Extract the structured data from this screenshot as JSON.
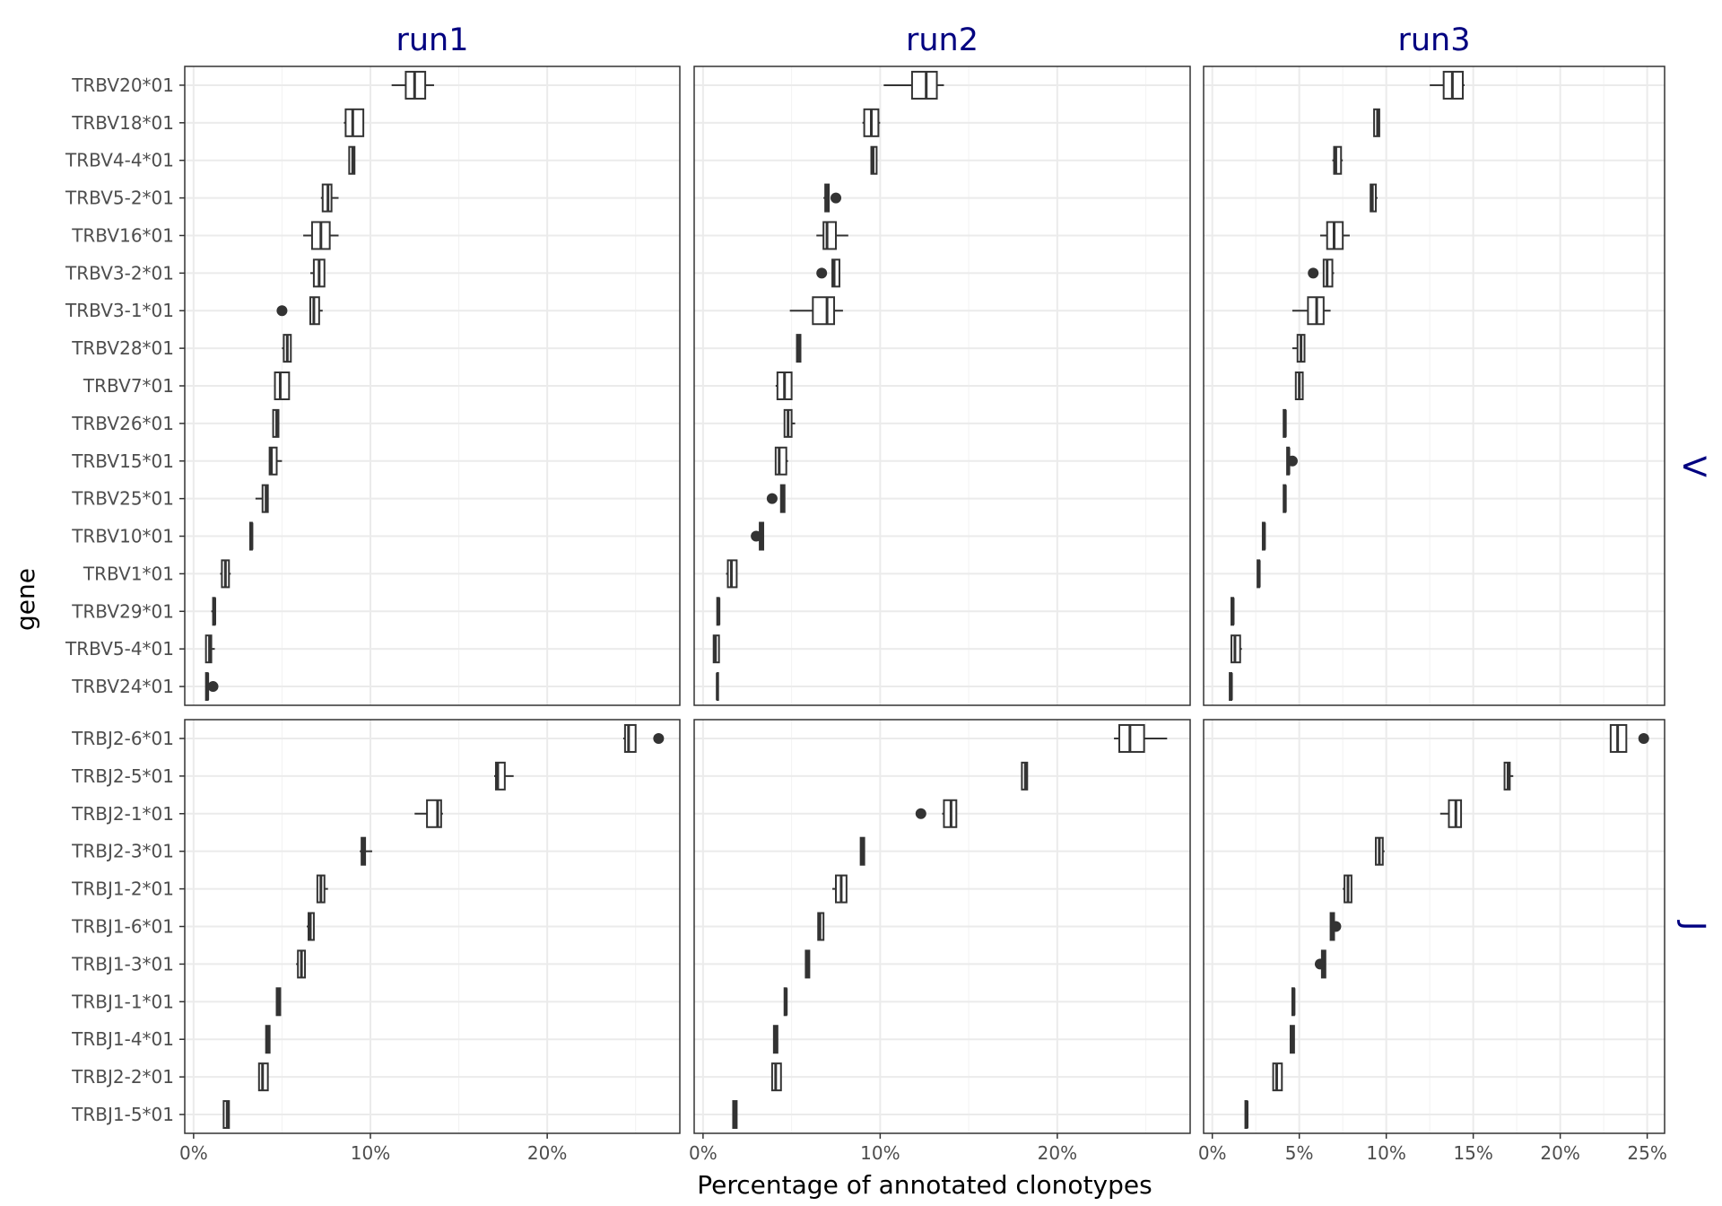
{
  "chart_data": {
    "type": "boxplot",
    "xlabel": "Percentage of annotated clonotypes",
    "ylabel": "gene",
    "columns": [
      "run1",
      "run2",
      "run3"
    ],
    "rows": [
      "V",
      "J"
    ],
    "xlim": {
      "run1": [
        -0.5,
        27.5
      ],
      "run2": [
        -0.5,
        27.5
      ],
      "run3": [
        -0.5,
        26
      ]
    },
    "xticks": {
      "run1": {
        "values": [
          0,
          10,
          20
        ],
        "labels": [
          "0%",
          "10%",
          "20%"
        ]
      },
      "run2": {
        "values": [
          0,
          10,
          20
        ],
        "labels": [
          "0%",
          "10%",
          "20%"
        ]
      },
      "run3": {
        "values": [
          0,
          5,
          10,
          15,
          20,
          25
        ],
        "labels": [
          "0%",
          "5%",
          "10%",
          "15%",
          "20%",
          "25%"
        ]
      }
    },
    "panels": [
      {
        "row": "V",
        "genes": [
          "TRBV20*01",
          "TRBV18*01",
          "TRBV4-4*01",
          "TRBV5-2*01",
          "TRBV16*01",
          "TRBV3-2*01",
          "TRBV3-1*01",
          "TRBV28*01",
          "TRBV7*01",
          "TRBV26*01",
          "TRBV15*01",
          "TRBV25*01",
          "TRBV10*01",
          "TRBV1*01",
          "TRBV29*01",
          "TRBV5-4*01",
          "TRBV24*01"
        ],
        "runs": [
          {
            "run": "run1",
            "boxes": [
              [
                11.2,
                12.0,
                12.5,
                13.1,
                13.6
              ],
              [
                8.5,
                8.6,
                9.0,
                9.6,
                9.6
              ],
              [
                8.8,
                8.8,
                9.0,
                9.1,
                9.1
              ],
              [
                7.2,
                7.3,
                7.6,
                7.8,
                8.2
              ],
              [
                6.2,
                6.7,
                7.2,
                7.7,
                8.2
              ],
              [
                6.6,
                6.8,
                7.1,
                7.4,
                7.4
              ],
              [
                6.6,
                6.6,
                6.8,
                7.1,
                7.3
              ],
              [
                5.0,
                5.1,
                5.3,
                5.5,
                5.5
              ],
              [
                4.6,
                4.6,
                4.9,
                5.4,
                5.4
              ],
              [
                4.5,
                4.5,
                4.7,
                4.8,
                4.8
              ],
              [
                4.3,
                4.3,
                4.4,
                4.7,
                5.0
              ],
              [
                3.5,
                3.9,
                4.1,
                4.2,
                4.2
              ],
              [
                3.2,
                3.2,
                3.3,
                3.3,
                3.3
              ],
              [
                1.5,
                1.6,
                1.8,
                2.0,
                2.1
              ],
              [
                1.0,
                1.1,
                1.2,
                1.2,
                1.2
              ],
              [
                0.7,
                0.7,
                0.9,
                1.0,
                1.2
              ],
              [
                0.7,
                0.7,
                0.8,
                0.8,
                0.8
              ]
            ],
            "outliers": [
              {
                "gene": "TRBV3-1*01",
                "value": 5.0
              },
              {
                "gene": "TRBV24*01",
                "value": 1.1
              }
            ]
          },
          {
            "run": "run2",
            "boxes": [
              [
                10.2,
                11.8,
                12.6,
                13.2,
                13.6
              ],
              [
                9.0,
                9.1,
                9.5,
                9.9,
                10.0
              ],
              [
                9.5,
                9.5,
                9.6,
                9.8,
                9.8
              ],
              [
                6.8,
                6.9,
                7.0,
                7.1,
                7.1
              ],
              [
                6.4,
                6.8,
                7.0,
                7.5,
                8.2
              ],
              [
                7.3,
                7.3,
                7.4,
                7.7,
                7.7
              ],
              [
                4.9,
                6.2,
                7.0,
                7.4,
                7.9
              ],
              [
                5.3,
                5.3,
                5.4,
                5.5,
                5.5
              ],
              [
                4.1,
                4.2,
                4.6,
                5.0,
                5.0
              ],
              [
                4.6,
                4.6,
                4.8,
                5.0,
                5.2
              ],
              [
                4.1,
                4.1,
                4.3,
                4.7,
                4.8
              ],
              [
                4.4,
                4.4,
                4.5,
                4.6,
                4.6
              ],
              [
                3.2,
                3.2,
                3.3,
                3.4,
                3.4
              ],
              [
                1.3,
                1.4,
                1.6,
                1.9,
                1.9
              ],
              [
                0.8,
                0.8,
                0.9,
                0.9,
                0.9
              ],
              [
                0.6,
                0.6,
                0.7,
                0.9,
                0.9
              ],
              [
                0.8,
                0.8,
                0.8,
                0.8,
                0.8
              ]
            ],
            "outliers": [
              {
                "gene": "TRBV5-2*01",
                "value": 7.5
              },
              {
                "gene": "TRBV3-2*01",
                "value": 6.7
              },
              {
                "gene": "TRBV25*01",
                "value": 3.9
              },
              {
                "gene": "TRBV10*01",
                "value": 3.0
              }
            ]
          },
          {
            "run": "run3",
            "boxes": [
              [
                12.5,
                13.3,
                13.8,
                14.4,
                14.5
              ],
              [
                9.3,
                9.3,
                9.5,
                9.6,
                9.6
              ],
              [
                6.9,
                7.0,
                7.1,
                7.4,
                7.5
              ],
              [
                9.1,
                9.1,
                9.2,
                9.4,
                9.5
              ],
              [
                6.2,
                6.6,
                7.0,
                7.5,
                7.9
              ],
              [
                6.4,
                6.4,
                6.6,
                6.9,
                7.0
              ],
              [
                4.6,
                5.5,
                6.0,
                6.4,
                6.8
              ],
              [
                4.6,
                4.9,
                5.1,
                5.3,
                5.3
              ],
              [
                4.8,
                4.8,
                5.0,
                5.2,
                5.2
              ],
              [
                4.1,
                4.1,
                4.2,
                4.2,
                4.2
              ],
              [
                4.3,
                4.3,
                4.4,
                4.4,
                4.4
              ],
              [
                4.1,
                4.1,
                4.2,
                4.2,
                4.2
              ],
              [
                2.9,
                2.9,
                3.0,
                3.0,
                3.0
              ],
              [
                2.6,
                2.6,
                2.7,
                2.7,
                2.7
              ],
              [
                1.1,
                1.1,
                1.2,
                1.2,
                1.2
              ],
              [
                1.1,
                1.1,
                1.3,
                1.6,
                1.7
              ],
              [
                1.0,
                1.0,
                1.1,
                1.1,
                1.1
              ]
            ],
            "outliers": [
              {
                "gene": "TRBV3-2*01",
                "value": 5.8
              },
              {
                "gene": "TRBV15*01",
                "value": 4.6
              }
            ]
          }
        ]
      },
      {
        "row": "J",
        "genes": [
          "TRBJ2-6*01",
          "TRBJ2-5*01",
          "TRBJ2-1*01",
          "TRBJ2-3*01",
          "TRBJ1-2*01",
          "TRBJ1-6*01",
          "TRBJ1-3*01",
          "TRBJ1-1*01",
          "TRBJ1-4*01",
          "TRBJ2-2*01",
          "TRBJ1-5*01"
        ],
        "runs": [
          {
            "run": "run1",
            "boxes": [
              [
                24.3,
                24.4,
                24.6,
                25.0,
                25.0
              ],
              [
                17.0,
                17.1,
                17.2,
                17.6,
                18.1
              ],
              [
                12.5,
                13.2,
                13.8,
                14.0,
                14.1
              ],
              [
                9.4,
                9.5,
                9.6,
                9.7,
                10.1
              ],
              [
                7.0,
                7.0,
                7.2,
                7.4,
                7.6
              ],
              [
                6.4,
                6.5,
                6.6,
                6.8,
                6.8
              ],
              [
                5.8,
                5.9,
                6.1,
                6.3,
                6.3
              ],
              [
                4.7,
                4.7,
                4.8,
                4.9,
                4.9
              ],
              [
                4.1,
                4.1,
                4.2,
                4.3,
                4.3
              ],
              [
                3.7,
                3.7,
                3.9,
                4.2,
                4.2
              ],
              [
                1.7,
                1.7,
                1.9,
                2.0,
                2.0
              ]
            ],
            "outliers": [
              {
                "gene": "TRBJ2-6*01",
                "value": 26.3
              }
            ]
          },
          {
            "run": "run2",
            "boxes": [
              [
                23.2,
                23.5,
                24.1,
                24.9,
                26.2
              ],
              [
                18.0,
                18.0,
                18.2,
                18.3,
                18.3
              ],
              [
                13.5,
                13.6,
                14.0,
                14.3,
                14.3
              ],
              [
                8.9,
                8.9,
                9.0,
                9.1,
                9.1
              ],
              [
                7.3,
                7.5,
                7.8,
                8.1,
                8.1
              ],
              [
                6.5,
                6.5,
                6.6,
                6.8,
                6.8
              ],
              [
                5.8,
                5.8,
                5.9,
                6.0,
                6.0
              ],
              [
                4.6,
                4.6,
                4.7,
                4.7,
                4.7
              ],
              [
                4.0,
                4.0,
                4.1,
                4.2,
                4.2
              ],
              [
                3.9,
                3.9,
                4.1,
                4.4,
                4.4
              ],
              [
                1.7,
                1.7,
                1.8,
                1.9,
                1.9
              ]
            ],
            "outliers": [
              {
                "gene": "TRBJ2-1*01",
                "value": 12.3
              }
            ]
          },
          {
            "run": "run3",
            "boxes": [
              [
                22.9,
                22.9,
                23.3,
                23.8,
                23.8
              ],
              [
                16.8,
                16.8,
                17.0,
                17.1,
                17.3
              ],
              [
                13.1,
                13.6,
                14.0,
                14.3,
                14.3
              ],
              [
                9.4,
                9.4,
                9.6,
                9.8,
                9.9
              ],
              [
                7.5,
                7.6,
                7.8,
                8.0,
                8.0
              ],
              [
                6.8,
                6.8,
                6.9,
                7.0,
                7.0
              ],
              [
                6.3,
                6.3,
                6.4,
                6.5,
                6.5
              ],
              [
                4.6,
                4.6,
                4.7,
                4.7,
                4.7
              ],
              [
                4.5,
                4.5,
                4.6,
                4.7,
                4.7
              ],
              [
                3.5,
                3.5,
                3.7,
                4.0,
                4.0
              ],
              [
                1.9,
                1.9,
                2.0,
                2.0,
                2.0
              ]
            ],
            "outliers": [
              {
                "gene": "TRBJ2-6*01",
                "value": 24.8
              },
              {
                "gene": "TRBJ1-6*01",
                "value": 7.1
              },
              {
                "gene": "TRBJ1-3*01",
                "value": 6.2
              }
            ]
          }
        ]
      }
    ]
  }
}
